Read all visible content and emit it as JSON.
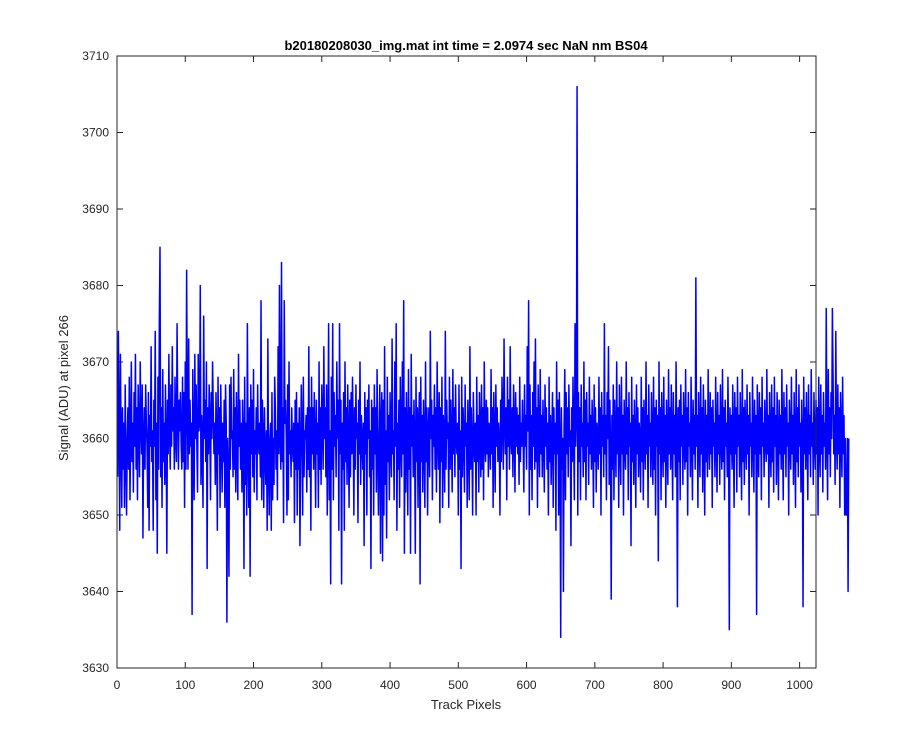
{
  "chart_data": {
    "type": "line",
    "title": "b20180208030_img.mat int time = 2.0974 sec  NaN nm BS04",
    "xlabel": "Track Pixels",
    "ylabel": "Signal (ADU) at pixel 266",
    "xlim": [
      0,
      1024
    ],
    "ylim": [
      3630,
      3710
    ],
    "xticks": [
      0,
      100,
      200,
      300,
      400,
      500,
      600,
      700,
      800,
      900,
      1000
    ],
    "yticks": [
      3630,
      3640,
      3650,
      3660,
      3670,
      3680,
      3690,
      3700,
      3710
    ],
    "grid": false,
    "legend": "none",
    "series": [
      {
        "color": "#0000ff",
        "x_start": 1,
        "x_step": 1,
        "values": [
          3655,
          3674,
          3662,
          3648,
          3671,
          3660,
          3651,
          3664,
          3656,
          3662,
          3651,
          3667,
          3658,
          3650,
          3660,
          3664,
          3656,
          3668,
          3652,
          3660,
          3670,
          3657,
          3662,
          3653,
          3666,
          3659,
          3671,
          3656,
          3664,
          3652,
          3667,
          3661,
          3655,
          3670,
          3662,
          3658,
          3667,
          3647,
          3660,
          3664,
          3656,
          3667,
          3662,
          3659,
          3651,
          3666,
          3648,
          3663,
          3659,
          3672,
          3657,
          3661,
          3648,
          3665,
          3659,
          3674,
          3652,
          3662,
          3645,
          3668,
          3656,
          3675,
          3685,
          3655,
          3664,
          3651,
          3669,
          3657,
          3662,
          3654,
          3667,
          3660,
          3645,
          3665,
          3658,
          3671,
          3661,
          3656,
          3667,
          3659,
          3672,
          3661,
          3664,
          3656,
          3668,
          3660,
          3657,
          3675,
          3663,
          3656,
          3665,
          3661,
          3666,
          3659,
          3656,
          3668,
          3657,
          3666,
          3651,
          3670,
          3656,
          3682,
          3664,
          3656,
          3673,
          3658,
          3665,
          3659,
          3662,
          3637,
          3669,
          3659,
          3652,
          3671,
          3660,
          3667,
          3659,
          3653,
          3671,
          3661,
          3662,
          3680,
          3654,
          3663,
          3658,
          3651,
          3676,
          3660,
          3665,
          3657,
          3670,
          3643,
          3664,
          3658,
          3667,
          3662,
          3652,
          3666,
          3660,
          3670,
          3664,
          3658,
          3662,
          3654,
          3666,
          3660,
          3648,
          3668,
          3658,
          3664,
          3651,
          3667,
          3660,
          3653,
          3662,
          3657,
          3665,
          3651,
          3667,
          3662,
          3636,
          3660,
          3655,
          3642,
          3667,
          3656,
          3668,
          3660,
          3661,
          3655,
          3669,
          3656,
          3664,
          3653,
          3666,
          3659,
          3652,
          3671,
          3659,
          3665,
          3656,
          3662,
          3653,
          3665,
          3660,
          3643,
          3668,
          3654,
          3662,
          3650,
          3675,
          3659,
          3651,
          3664,
          3642,
          3667,
          3658,
          3665,
          3655,
          3669,
          3653,
          3661,
          3658,
          3664,
          3652,
          3667,
          3660,
          3658,
          3662,
          3655,
          3678,
          3652,
          3665,
          3660,
          3651,
          3664,
          3658,
          3654,
          3661,
          3648,
          3673,
          3656,
          3650,
          3660,
          3662,
          3648,
          3666,
          3652,
          3660,
          3654,
          3668,
          3664,
          3656,
          3661,
          3652,
          3672,
          3658,
          3680,
          3660,
          3656,
          3683,
          3657,
          3664,
          3649,
          3678,
          3662,
          3665,
          3660,
          3650,
          3667,
          3652,
          3670,
          3658,
          3661,
          3655,
          3664,
          3659,
          3657,
          3662,
          3649,
          3665,
          3656,
          3666,
          3650,
          3662,
          3656,
          3664,
          3646,
          3658,
          3667,
          3660,
          3650,
          3668,
          3655,
          3661,
          3660,
          3663,
          3653,
          3664,
          3656,
          3672,
          3655,
          3664,
          3648,
          3668,
          3658,
          3664,
          3656,
          3666,
          3660,
          3651,
          3665,
          3658,
          3662,
          3651,
          3670,
          3656,
          3664,
          3654,
          3667,
          3662,
          3656,
          3672,
          3660,
          3664,
          3655,
          3667,
          3650,
          3660,
          3675,
          3652,
          3661,
          3641,
          3668,
          3656,
          3675,
          3652,
          3666,
          3659,
          3663,
          3655,
          3670,
          3660,
          3665,
          3648,
          3675,
          3658,
          3665,
          3641,
          3662,
          3656,
          3666,
          3648,
          3670,
          3657,
          3664,
          3654,
          3667,
          3660,
          3651,
          3665,
          3655,
          3666,
          3658,
          3668,
          3661,
          3650,
          3664,
          3656,
          3667,
          3660,
          3662,
          3649,
          3665,
          3658,
          3670,
          3654,
          3663,
          3660,
          3656,
          3662,
          3646,
          3666,
          3658,
          3664,
          3650,
          3665,
          3660,
          3667,
          3655,
          3661,
          3643,
          3665,
          3656,
          3664,
          3650,
          3667,
          3658,
          3664,
          3653,
          3669,
          3659,
          3650,
          3660,
          3667,
          3645,
          3662,
          3666,
          3644,
          3665,
          3650,
          3672,
          3654,
          3661,
          3647,
          3668,
          3657,
          3663,
          3652,
          3666,
          3660,
          3655,
          3673,
          3658,
          3661,
          3652,
          3670,
          3659,
          3675,
          3648,
          3662,
          3656,
          3665,
          3651,
          3668,
          3660,
          3655,
          3670,
          3658,
          3678,
          3645,
          3664,
          3653,
          3666,
          3660,
          3650,
          3669,
          3656,
          3664,
          3645,
          3671,
          3659,
          3663,
          3655,
          3665,
          3660,
          3645,
          3668,
          3657,
          3664,
          3651,
          3662,
          3666,
          3641,
          3668,
          3657,
          3663,
          3653,
          3665,
          3660,
          3651,
          3670,
          3657,
          3664,
          3650,
          3661,
          3664,
          3655,
          3674,
          3660,
          3665,
          3652,
          3663,
          3659,
          3667,
          3656,
          3664,
          3653,
          3670,
          3660,
          3656,
          3666,
          3649,
          3664,
          3657,
          3668,
          3651,
          3663,
          3660,
          3653,
          3674,
          3656,
          3665,
          3660,
          3662,
          3651,
          3668,
          3656,
          3665,
          3660,
          3653,
          3669,
          3658,
          3664,
          3655,
          3667,
          3660,
          3658,
          3662,
          3650,
          3667,
          3656,
          3661,
          3643,
          3668,
          3655,
          3664,
          3660,
          3653,
          3667,
          3659,
          3662,
          3651,
          3665,
          3660,
          3652,
          3672,
          3656,
          3664,
          3659,
          3650,
          3666,
          3660,
          3657,
          3662,
          3650,
          3668,
          3657,
          3663,
          3653,
          3666,
          3661,
          3655,
          3667,
          3656,
          3664,
          3652,
          3670,
          3660,
          3657,
          3665,
          3658,
          3664,
          3655,
          3662,
          3660,
          3656,
          3669,
          3658,
          3664,
          3651,
          3666,
          3660,
          3653,
          3667,
          3659,
          3664,
          3657,
          3662,
          3660,
          3650,
          3665,
          3657,
          3668,
          3662,
          3656,
          3673,
          3662,
          3658,
          3664,
          3652,
          3668,
          3659,
          3665,
          3656,
          3672,
          3660,
          3658,
          3664,
          3655,
          3667,
          3662,
          3653,
          3666,
          3659,
          3664,
          3658,
          3663,
          3654,
          3668,
          3657,
          3662,
          3659,
          3665,
          3660,
          3653,
          3667,
          3659,
          3663,
          3656,
          3672,
          3661,
          3678,
          3650,
          3667,
          3656,
          3663,
          3652,
          3666,
          3659,
          3670,
          3656,
          3673,
          3657,
          3664,
          3651,
          3667,
          3660,
          3655,
          3669,
          3658,
          3663,
          3655,
          3665,
          3660,
          3653,
          3667,
          3659,
          3664,
          3656,
          3662,
          3650,
          3668,
          3657,
          3663,
          3654,
          3660,
          3666,
          3651,
          3664,
          3658,
          3662,
          3648,
          3670,
          3658,
          3665,
          3650,
          3666,
          3659,
          3634,
          3664,
          3656,
          3660,
          3640,
          3662,
          3669,
          3652,
          3666,
          3658,
          3664,
          3655,
          3667,
          3659,
          3661,
          3646,
          3664,
          3657,
          3668,
          3660,
          3652,
          3675,
          3659,
          3663,
          3706,
          3650,
          3666,
          3657,
          3664,
          3652,
          3667,
          3659,
          3662,
          3655,
          3670,
          3657,
          3665,
          3652,
          3666,
          3659,
          3662,
          3654,
          3668,
          3658,
          3663,
          3656,
          3665,
          3660,
          3651,
          3667,
          3657,
          3664,
          3653,
          3662,
          3660,
          3656,
          3668,
          3658,
          3664,
          3650,
          3666,
          3659,
          3663,
          3655,
          3675,
          3658,
          3663,
          3652,
          3666,
          3660,
          3672,
          3654,
          3665,
          3659,
          3639,
          3663,
          3656,
          3667,
          3652,
          3665,
          3660,
          3655,
          3670,
          3658,
          3664,
          3651,
          3667,
          3660,
          3654,
          3668,
          3658,
          3663,
          3650,
          3665,
          3660,
          3656,
          3670,
          3658,
          3664,
          3652,
          3666,
          3659,
          3662,
          3646,
          3668,
          3657,
          3663,
          3654,
          3665,
          3660,
          3651,
          3667,
          3658,
          3664,
          3655,
          3662,
          3660,
          3653,
          3668,
          3657,
          3664,
          3652,
          3665,
          3660,
          3656,
          3670,
          3658,
          3663,
          3651,
          3667,
          3659,
          3662,
          3655,
          3666,
          3660,
          3654,
          3668,
          3656,
          3664,
          3650,
          3665,
          3659,
          3663,
          3644,
          3670,
          3658,
          3664,
          3652,
          3666,
          3660,
          3655,
          3668,
          3657,
          3663,
          3651,
          3665,
          3660,
          3654,
          3669,
          3658,
          3664,
          3656,
          3667,
          3660,
          3652,
          3666,
          3658,
          3663,
          3655,
          3670,
          3660,
          3638,
          3664,
          3657,
          3665,
          3652,
          3667,
          3659,
          3663,
          3654,
          3666,
          3660,
          3656,
          3669,
          3657,
          3664,
          3650,
          3666,
          3659,
          3662,
          3655,
          3668,
          3660,
          3652,
          3665,
          3658,
          3663,
          3656,
          3681,
          3659,
          3663,
          3651,
          3666,
          3660,
          3655,
          3668,
          3658,
          3664,
          3653,
          3667,
          3660,
          3650,
          3665,
          3657,
          3663,
          3655,
          3669,
          3660,
          3656,
          3666,
          3658,
          3664,
          3651,
          3665,
          3659,
          3662,
          3655,
          3668,
          3660,
          3653,
          3666,
          3658,
          3663,
          3654,
          3667,
          3660,
          3656,
          3669,
          3657,
          3664,
          3652,
          3665,
          3659,
          3662,
          3655,
          3668,
          3660,
          3635,
          3664,
          3658,
          3663,
          3656,
          3667,
          3660,
          3651,
          3666,
          3658,
          3664,
          3653,
          3668,
          3659,
          3663,
          3655,
          3666,
          3660,
          3652,
          3669,
          3657,
          3664,
          3654,
          3665,
          3660,
          3656,
          3667,
          3658,
          3663,
          3650,
          3666,
          3659,
          3662,
          3655,
          3668,
          3660,
          3653,
          3665,
          3658,
          3663,
          3637,
          3667,
          3660,
          3655,
          3666,
          3658,
          3664,
          3652,
          3668,
          3659,
          3662,
          3655,
          3665,
          3660,
          3657,
          3669,
          3658,
          3663,
          3651,
          3666,
          3660,
          3655,
          3667,
          3657,
          3664,
          3653,
          3668,
          3659,
          3663,
          3654,
          3666,
          3660,
          3652,
          3665,
          3658,
          3663,
          3656,
          3669,
          3660,
          3652,
          3666,
          3658,
          3664,
          3655,
          3667,
          3659,
          3662,
          3650,
          3665,
          3660,
          3656,
          3668,
          3658,
          3663,
          3654,
          3666,
          3660,
          3651,
          3669,
          3657,
          3664,
          3655,
          3667,
          3659,
          3662,
          3653,
          3665,
          3660,
          3638,
          3668,
          3658,
          3664,
          3656,
          3666,
          3660,
          3652,
          3667,
          3658,
          3663,
          3655,
          3669,
          3659,
          3662,
          3654,
          3666,
          3660,
          3656,
          3665,
          3658,
          3664,
          3650,
          3668,
          3660,
          3655,
          3667,
          3658,
          3663,
          3653,
          3666,
          3659,
          3662,
          3656,
          3677,
          3660,
          3652,
          3669,
          3658,
          3664,
          3655,
          3666,
          3660,
          3677,
          3668,
          3658,
          3663,
          3654,
          3674,
          3660,
          3656,
          3667,
          3658,
          3664,
          3651,
          3666,
          3660,
          3655,
          3668,
          3658,
          3663,
          3650,
          3660,
          3650,
          3650,
          3660,
          3640,
          3660
        ]
      }
    ]
  }
}
